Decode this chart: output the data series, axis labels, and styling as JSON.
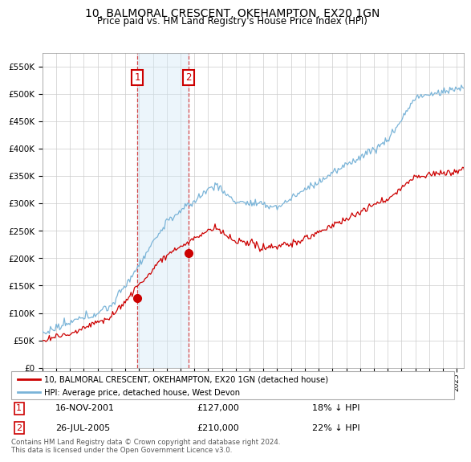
{
  "title": "10, BALMORAL CRESCENT, OKEHAMPTON, EX20 1GN",
  "subtitle": "Price paid vs. HM Land Registry's House Price Index (HPI)",
  "legend_entry1": "10, BALMORAL CRESCENT, OKEHAMPTON, EX20 1GN (detached house)",
  "legend_entry2": "HPI: Average price, detached house, West Devon",
  "transaction1_date": "16-NOV-2001",
  "transaction1_price": "£127,000",
  "transaction1_hpi": "18% ↓ HPI",
  "transaction2_date": "26-JUL-2005",
  "transaction2_price": "£210,000",
  "transaction2_hpi": "22% ↓ HPI",
  "footnote": "Contains HM Land Registry data © Crown copyright and database right 2024.\nThis data is licensed under the Open Government Licence v3.0.",
  "hpi_color": "#7ab4d8",
  "price_color": "#cc0000",
  "shade_color": "#d0e8f5",
  "ylim_min": 0,
  "ylim_max": 575000,
  "yticks": [
    0,
    50000,
    100000,
    150000,
    200000,
    250000,
    300000,
    350000,
    400000,
    450000,
    500000,
    550000
  ],
  "ytick_labels": [
    "£0",
    "£50K",
    "£100K",
    "£150K",
    "£200K",
    "£250K",
    "£300K",
    "£350K",
    "£400K",
    "£450K",
    "£500K",
    "£550K"
  ],
  "transaction1_x": 2001.88,
  "transaction1_y": 127000,
  "transaction2_x": 2005.57,
  "transaction2_y": 210000,
  "xmin": 1995,
  "xmax": 2025.5
}
